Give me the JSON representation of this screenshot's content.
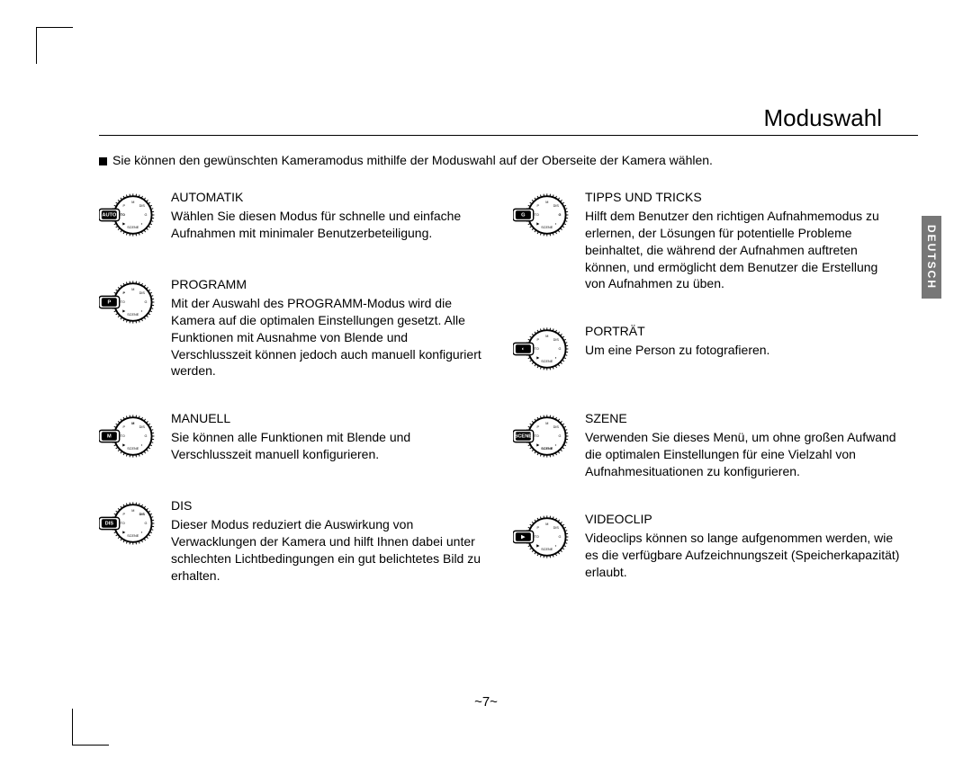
{
  "page": {
    "title": "Moduswahl",
    "intro": "Sie können den gewünschten Kameramodus mithilfe der Moduswahl auf der Oberseite der Kamera wählen.",
    "page_number": "~7~",
    "side_tab": "DEUTSCH",
    "colors": {
      "text": "#000000",
      "side_tab_bg": "#777777",
      "side_tab_text": "#ffffff",
      "page_bg": "#ffffff"
    }
  },
  "modes_left": [
    {
      "title": "AUTOMATIK",
      "body": "Wählen Sie diesen Modus für schnelle und einfache Aufnahmen mit minimaler Benutzerbeteiligung.",
      "selected_label": "AUTO",
      "selected_index": 0
    },
    {
      "title": "PROGRAMM",
      "body": "Mit der Auswahl des PROGRAMM-Modus wird die Kamera auf die optimalen Einstellungen gesetzt. Alle Funktionen mit Ausnahme von Blende und Verschlusszeit können jedoch auch manuell konfiguriert werden.",
      "selected_label": "P",
      "selected_index": 1
    },
    {
      "title": "MANUELL",
      "body": "Sie können alle Funktionen mit Blende und Verschlusszeit manuell konfigurieren.",
      "selected_label": "M",
      "selected_index": 2
    },
    {
      "title": "DIS",
      "body": "Dieser Modus reduziert die Auswirkung von Verwacklungen der Kamera und hilft Ihnen dabei unter schlechten Lichtbedingungen ein gut belichtetes Bild zu erhalten.",
      "selected_label": "DIS",
      "selected_index": 3
    }
  ],
  "modes_right": [
    {
      "title": "TIPPS UND TRICKS",
      "body": "Hilft dem Benutzer den richtigen Aufnahmemodus zu erlernen, der Lösungen für potentielle Probleme beinhaltet, die während der Aufnahmen auftreten können, und ermöglicht dem Benutzer die Erstellung von Aufnahmen zu üben.",
      "selected_label": "G",
      "selected_index": 4
    },
    {
      "title": "PORTRÄT",
      "body": "Um eine Person zu fotografieren.",
      "selected_label": "◐",
      "selected_index": 5
    },
    {
      "title": "SZENE",
      "body": "Verwenden Sie dieses Menü, um ohne großen Aufwand die optimalen Einstellungen für eine Vielzahl von Aufnahmesituationen zu konfigurieren.",
      "selected_label": "SCENE",
      "selected_index": 6
    },
    {
      "title": "VIDEOCLIP",
      "body": "Videoclips können so lange aufgenommen werden, wie es die verfügbare Aufzeichnungszeit (Speicherkapazität) erlaubt.",
      "selected_label": "▶",
      "selected_index": 7
    }
  ],
  "dial_labels": [
    "AUTO",
    "P",
    "M",
    "DIS",
    "G",
    "◐",
    "SCENE",
    "▶"
  ]
}
